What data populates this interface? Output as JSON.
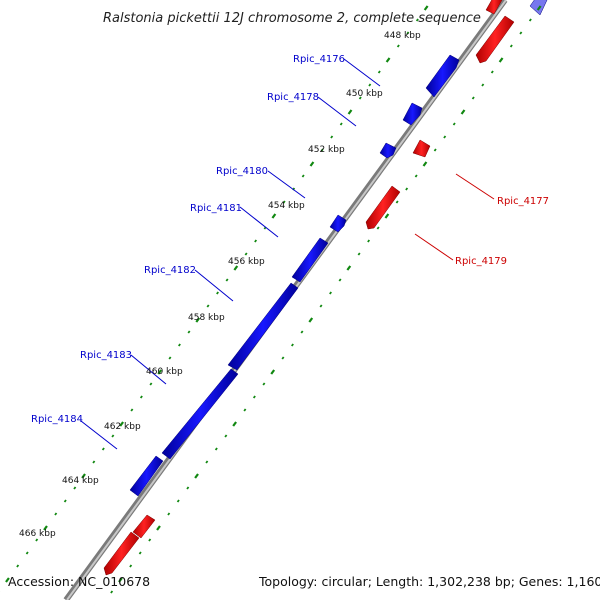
{
  "title": "Ralstonia pickettii 12J chromosome 2, complete sequence",
  "footer": {
    "accession": "Accession: NC_010678",
    "summary": "Topology: circular; Length: 1,302,238 bp; Genes: 1,160"
  },
  "colors": {
    "forward_strand": "#0000ee",
    "reverse_strand": "#ee0000",
    "backbone": "#888888",
    "ruler_dots": "#118811",
    "faded_forward": "#7777ee"
  },
  "ticks": [
    {
      "label": "448 kbp"
    },
    {
      "label": "450 kbp"
    },
    {
      "label": "452 kbp"
    },
    {
      "label": "454 kbp"
    },
    {
      "label": "456 kbp"
    },
    {
      "label": "458 kbp"
    },
    {
      "label": "460 kbp"
    },
    {
      "label": "462 kbp"
    },
    {
      "label": "464 kbp"
    },
    {
      "label": "466 kbp"
    }
  ],
  "genes": [
    {
      "name": "Rpic_4176",
      "strand": "forward"
    },
    {
      "name": "Rpic_4177",
      "strand": "reverse"
    },
    {
      "name": "Rpic_4178",
      "strand": "forward"
    },
    {
      "name": "Rpic_4179",
      "strand": "reverse"
    },
    {
      "name": "Rpic_4180",
      "strand": "forward"
    },
    {
      "name": "Rpic_4181",
      "strand": "forward"
    },
    {
      "name": "Rpic_4182",
      "strand": "forward"
    },
    {
      "name": "Rpic_4183",
      "strand": "forward"
    },
    {
      "name": "Rpic_4184",
      "strand": "forward"
    }
  ]
}
